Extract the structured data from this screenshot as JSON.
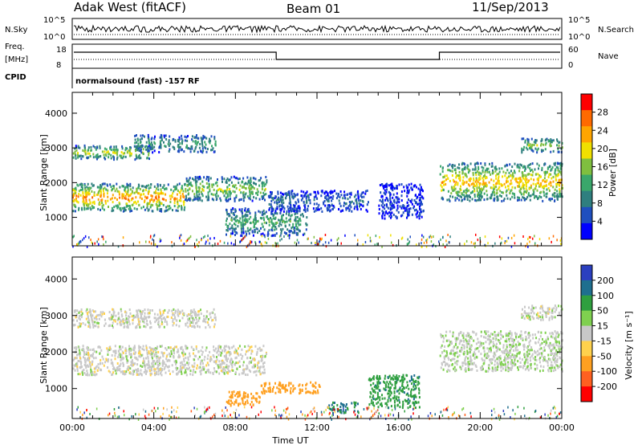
{
  "header": {
    "title_left": "Adak West (fitACF)",
    "title_center": "Beam 01",
    "title_right": "11/Sep/2013"
  },
  "top_panel": {
    "left_labels": [
      "N.Sky",
      "Freq.",
      "[MHz]",
      "CPID"
    ],
    "right_labels": [
      "N.Search",
      "Nave"
    ],
    "nsky_ticks": [
      "10^5",
      "10^0"
    ],
    "nsearch_ticks": [
      "10^5",
      "10^0"
    ],
    "freq_ticks": [
      "18",
      "8"
    ],
    "nave_ticks": [
      "60",
      "0"
    ],
    "cpid_text": "normalsound (fast) -157 RF"
  },
  "colors": {
    "axis": "#000000",
    "power_scale": [
      "#0000ff",
      "#1f4fbf",
      "#2f7f7f",
      "#3aa76b",
      "#7fbf3f",
      "#f0e000",
      "#ffa500",
      "#ff6a00",
      "#ff0000"
    ],
    "velocity_scale": [
      "#2b3fbf",
      "#1f6f8f",
      "#2f9f3f",
      "#7fd04f",
      "#c8c8c8",
      "#ffd24d",
      "#ffa020",
      "#ff6020",
      "#ff0000"
    ]
  },
  "chart_data": [
    {
      "type": "heatmap",
      "name": "power",
      "xlabel": "",
      "ylabel": "Slant Range [km]",
      "xlim": [
        0,
        24
      ],
      "ylim": [
        180,
        4600
      ],
      "yticks": [
        "1000",
        "2000",
        "3000",
        "4000"
      ],
      "colorbar_label": "Power [dB]",
      "colorbar_ticks": [
        "28",
        "24",
        "20",
        "16",
        "12",
        "8",
        "4"
      ],
      "bands": [
        {
          "x": [
            0.0,
            5.5
          ],
          "y": [
            1200,
            2000
          ],
          "level": 0.85
        },
        {
          "x": [
            5.5,
            9.5
          ],
          "y": [
            1500,
            2200
          ],
          "level": 0.55
        },
        {
          "x": [
            0.0,
            3.8
          ],
          "y": [
            2700,
            3100
          ],
          "level": 0.6
        },
        {
          "x": [
            3.0,
            7.0
          ],
          "y": [
            2900,
            3400
          ],
          "level": 0.35
        },
        {
          "x": [
            7.5,
            11.5
          ],
          "y": [
            500,
            1300
          ],
          "level": 0.4
        },
        {
          "x": [
            9.5,
            14.5
          ],
          "y": [
            1200,
            1800
          ],
          "level": 0.2
        },
        {
          "x": [
            15.0,
            17.2
          ],
          "y": [
            1000,
            2000
          ],
          "level": 0.1
        },
        {
          "x": [
            18.0,
            24.0
          ],
          "y": [
            1500,
            2600
          ],
          "level": 0.75
        },
        {
          "x": [
            22.0,
            24.0
          ],
          "y": [
            2900,
            3300
          ],
          "level": 0.55
        }
      ]
    },
    {
      "type": "heatmap",
      "name": "velocity",
      "xlabel": "Time UT",
      "ylabel": "Slant Range [km]",
      "xlim": [
        0,
        24
      ],
      "ylim": [
        180,
        4600
      ],
      "xticks": [
        "00:00",
        "04:00",
        "08:00",
        "12:00",
        "16:00",
        "20:00",
        "00:00"
      ],
      "yticks": [
        "1000",
        "2000",
        "3000",
        "4000"
      ],
      "colorbar_label": "Velocity [m s⁻¹]",
      "colorbar_ticks": [
        "200",
        "100",
        "50",
        "15",
        "-15",
        "-50",
        "-100",
        "-200"
      ],
      "bands": [
        {
          "x": [
            0.0,
            9.5
          ],
          "y": [
            1400,
            2200
          ],
          "v": 0
        },
        {
          "x": [
            0.0,
            7.0
          ],
          "y": [
            2700,
            3200
          ],
          "v": 0
        },
        {
          "x": [
            7.5,
            9.2
          ],
          "y": [
            550,
            950
          ],
          "v": -70
        },
        {
          "x": [
            9.2,
            12.2
          ],
          "y": [
            900,
            1200
          ],
          "v": -80
        },
        {
          "x": [
            12.5,
            14.0
          ],
          "y": [
            350,
            650
          ],
          "v": 80
        },
        {
          "x": [
            14.5,
            17.0
          ],
          "y": [
            500,
            1400
          ],
          "v": 60
        },
        {
          "x": [
            18.0,
            24.0
          ],
          "y": [
            1500,
            2600
          ],
          "v": 10
        },
        {
          "x": [
            22.0,
            24.0
          ],
          "y": [
            2900,
            3300
          ],
          "v": 0
        }
      ]
    }
  ]
}
